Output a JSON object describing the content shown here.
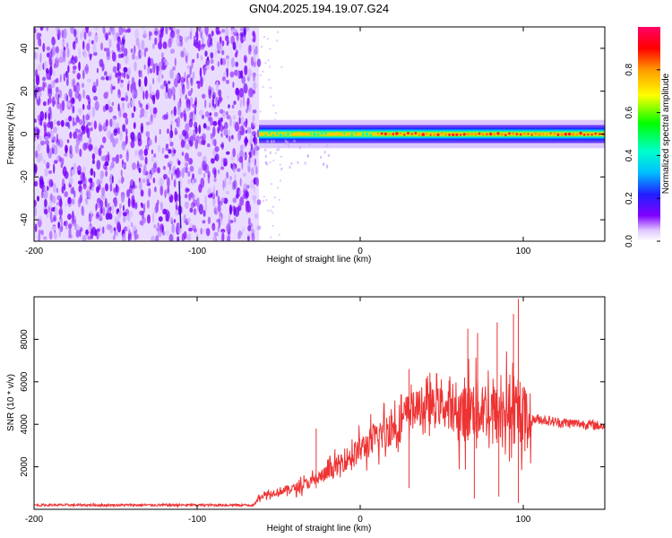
{
  "title": "GN04.2025.194.19.07.G24",
  "chart_data": [
    {
      "type": "heatmap",
      "xlabel": "Height of straight line (km)",
      "ylabel": "Frequency (Hz)",
      "xlim": [
        -200,
        150
      ],
      "ylim": [
        -50,
        50
      ],
      "x_ticks": [
        "-200",
        "-100",
        "0",
        "100"
      ],
      "x_tick_values": [
        -200,
        -100,
        0,
        100
      ],
      "y_ticks": [
        "40",
        "20",
        "0",
        "-20",
        "-40"
      ],
      "y_tick_values": [
        40,
        20,
        0,
        -20,
        -40
      ],
      "colorbar": {
        "label": "Normalized spectral amplitude",
        "range": [
          0,
          1
        ],
        "ticks": [
          "0.0",
          "0.2",
          "0.4",
          "0.6",
          "0.8"
        ],
        "tick_values": [
          0.0,
          0.2,
          0.4,
          0.6,
          0.8
        ]
      },
      "noise_region_x": [
        -200,
        -62
      ],
      "signal_band": {
        "x": [
          -62,
          150
        ],
        "center_hz": 0,
        "halfwidth_hz": 3
      }
    },
    {
      "type": "line",
      "xlabel": "Height of straight line (km)",
      "ylabel": "SNR (10 * v/v)",
      "xlim": [
        -200,
        150
      ],
      "ylim": [
        0,
        10000
      ],
      "x_ticks": [
        "-200",
        "-100",
        "0",
        "100"
      ],
      "x_tick_values": [
        -200,
        -100,
        0,
        100
      ],
      "y_ticks": [
        "8000",
        "6000",
        "4000",
        "2000"
      ],
      "y_tick_values": [
        8000,
        6000,
        4000,
        2000
      ],
      "line_color": "#ee3333",
      "series": [
        {
          "x": [
            -200,
            -150,
            -100,
            -65,
            -62,
            -50,
            -40,
            -30,
            -20,
            -10,
            0,
            10,
            20,
            28,
            30,
            40,
            50,
            60,
            65,
            70,
            80,
            85,
            90,
            95,
            100,
            105,
            110,
            120,
            130,
            140,
            150
          ],
          "values": [
            200,
            200,
            200,
            200,
            600,
            850,
            1000,
            1300,
            1700,
            2300,
            2800,
            3350,
            3900,
            4300,
            4700,
            4800,
            4900,
            4500,
            4600,
            4800,
            4700,
            4400,
            4800,
            4300,
            4500,
            4200,
            4250,
            4100,
            4050,
            4000,
            3900
          ],
          "spikes": [
            {
              "x": -27,
              "y": 3800
            },
            {
              "x": 30,
              "y": 6600
            },
            {
              "x": 64,
              "y": 6200
            },
            {
              "x": 66,
              "y": 8500
            },
            {
              "x": 72,
              "y": 8300
            },
            {
              "x": 84,
              "y": 8800
            },
            {
              "x": 94,
              "y": 9200
            },
            {
              "x": 97,
              "y": 9900
            }
          ],
          "dips": [
            {
              "x": 30,
              "y": 1000
            },
            {
              "x": 70,
              "y": 500
            },
            {
              "x": 85,
              "y": 600
            },
            {
              "x": 97,
              "y": 300
            }
          ]
        }
      ]
    }
  ]
}
